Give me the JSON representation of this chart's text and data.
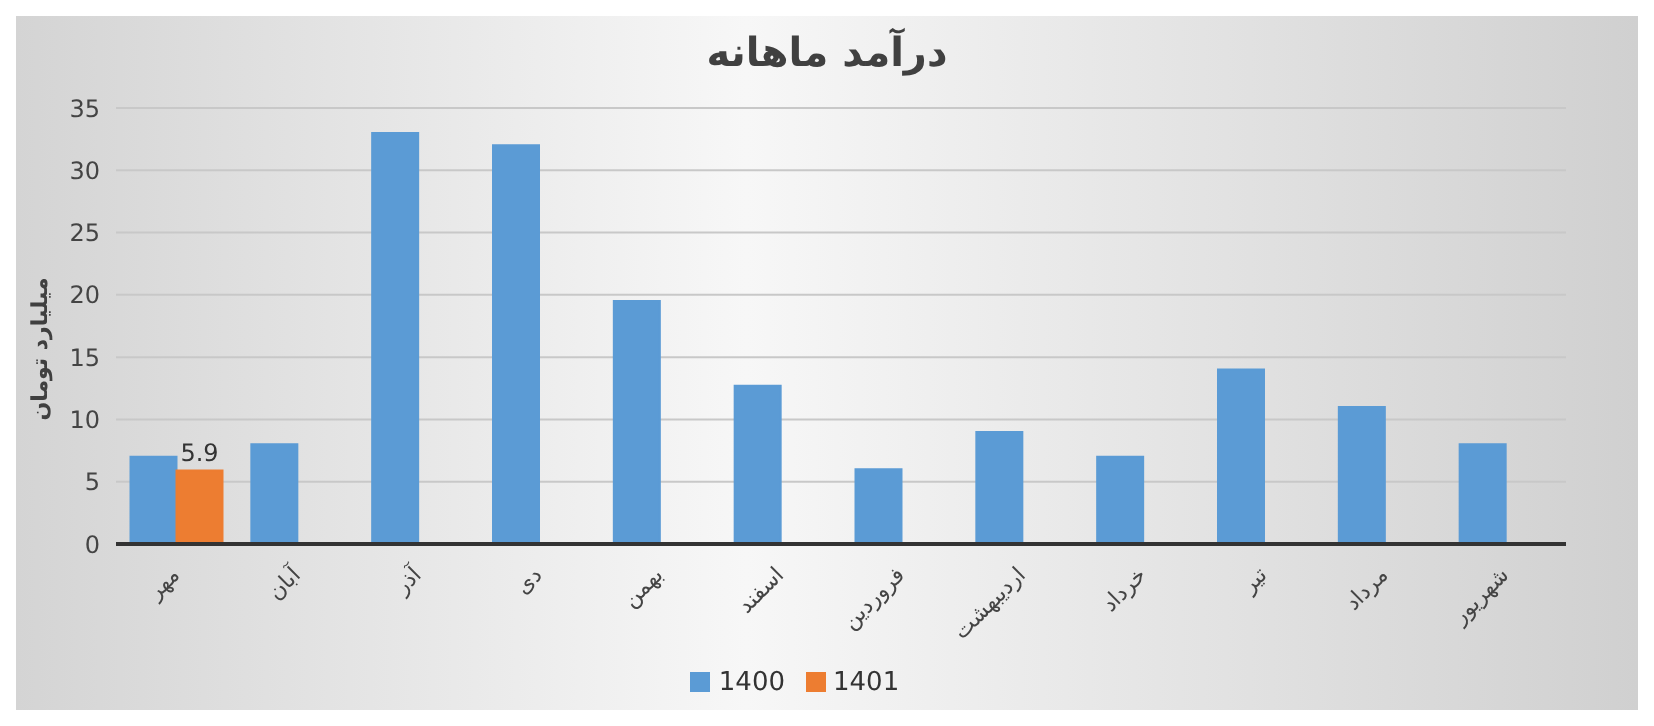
{
  "chart_data": {
    "type": "bar",
    "title": "درآمد ماهانه",
    "ylabel": "میلیارد تومان",
    "categories": [
      "مهر",
      "آبان",
      "آذر",
      "دی",
      "بهمن",
      "اسفند",
      "فروردین",
      "اردیبهشت",
      "خرداد",
      "تیر",
      "مرداد",
      "شهریور"
    ],
    "series": [
      {
        "name": "1400",
        "color": "#5b9bd5",
        "values": [
          7,
          8,
          33,
          32,
          19.5,
          12.7,
          6,
          9,
          7,
          14,
          11,
          8
        ]
      },
      {
        "name": "1401",
        "color": "#ed7d31",
        "values": [
          5.9,
          null,
          null,
          null,
          null,
          null,
          null,
          null,
          null,
          null,
          null,
          null
        ],
        "value_labels": [
          "5.9",
          null,
          null,
          null,
          null,
          null,
          null,
          null,
          null,
          null,
          null,
          null
        ]
      }
    ],
    "ylim": [
      0,
      35
    ],
    "yticks": [
      0,
      5,
      10,
      15,
      20,
      25,
      30,
      35
    ],
    "grid": "y",
    "legend": "bottom"
  }
}
